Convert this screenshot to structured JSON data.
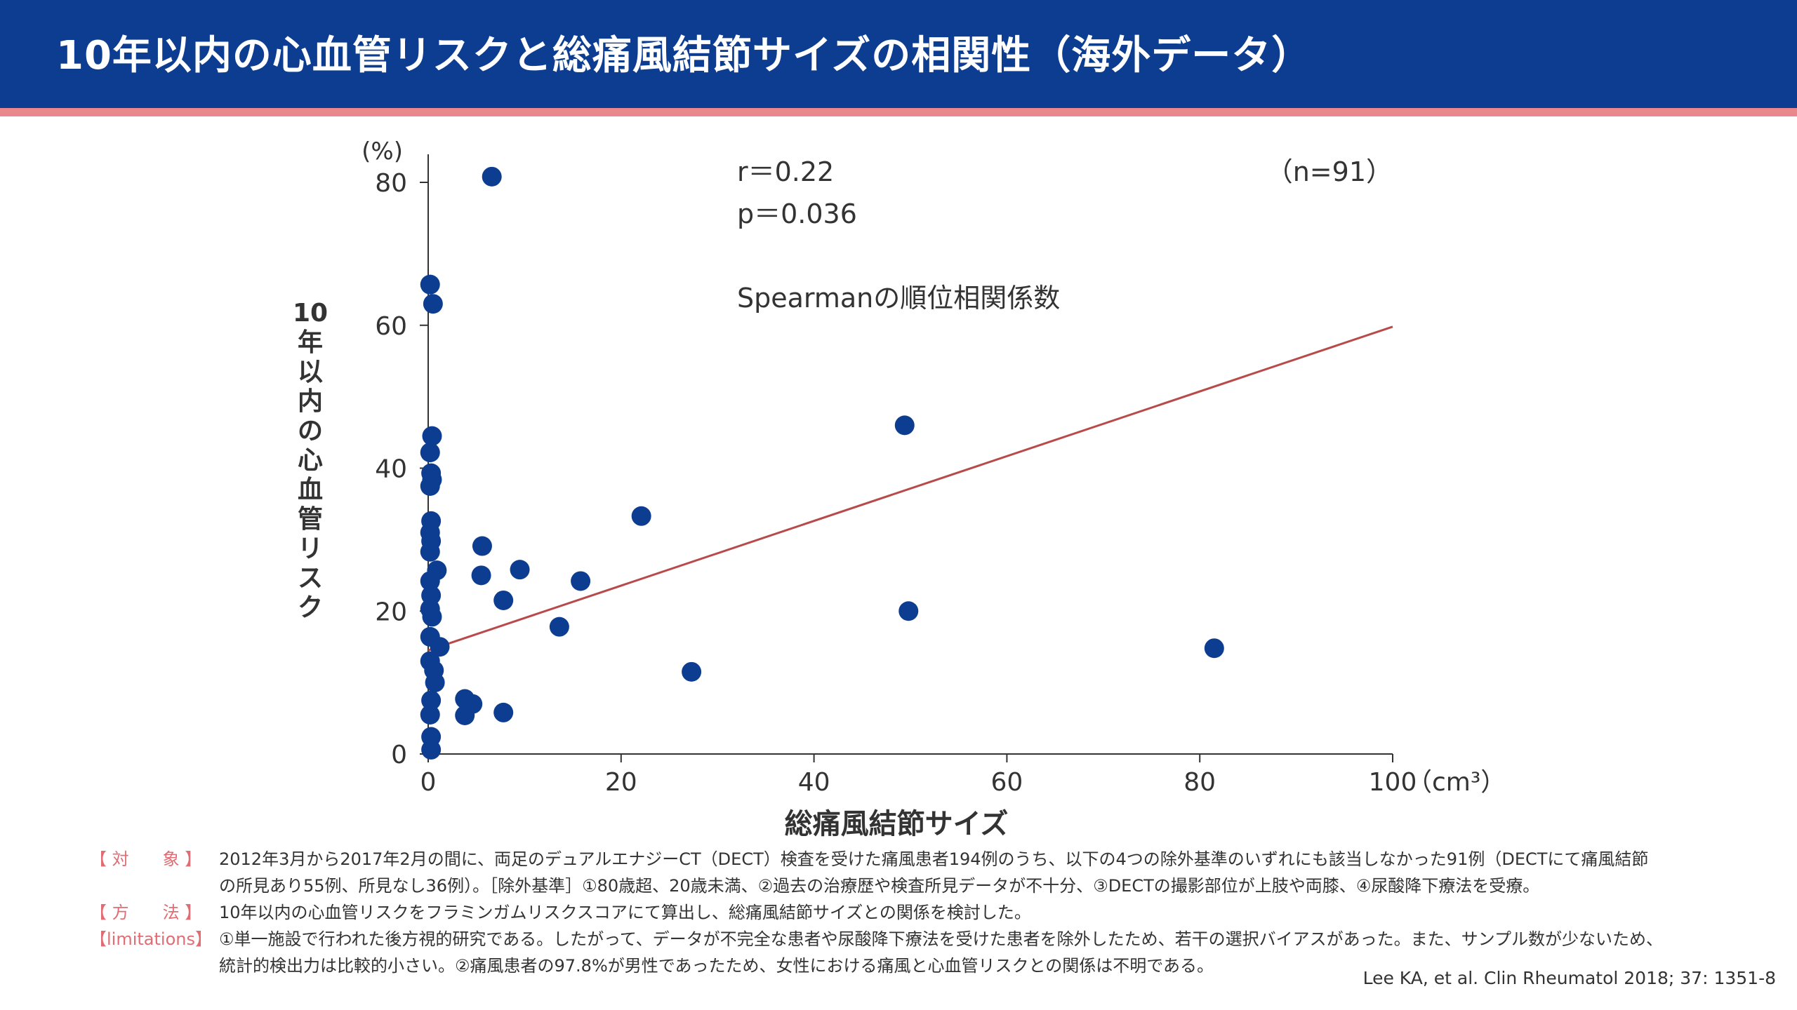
{
  "header": {
    "title": "10年以内の心血管リスクと総痛風結節サイズの相関性（海外データ）",
    "bg_color": "#0d3d91",
    "rule_color": "#e8888d"
  },
  "chart_data": {
    "type": "scatter",
    "xlabel": "総痛風結節サイズ",
    "ylabel": "10年以内の心血管リスク",
    "x_unit": "（cm³）",
    "y_unit": "(%)",
    "xlim": [
      0,
      100
    ],
    "ylim": [
      0,
      80
    ],
    "x_ticks": [
      0,
      20,
      40,
      60,
      80,
      100
    ],
    "y_ticks": [
      0,
      20,
      40,
      60,
      80
    ],
    "grid": false,
    "point_color": "#0d3d91",
    "line_color": "#b84a4a",
    "trend_line": {
      "x": [
        0,
        100
      ],
      "y": [
        14.5,
        59.8
      ]
    },
    "stats": {
      "r": "r＝0.22",
      "p": "p＝0.036",
      "method": "Spearmanの順位相関係数",
      "n": "（n=91）"
    },
    "points": [
      [
        6.6,
        80.8
      ],
      [
        0.2,
        65.7
      ],
      [
        0.5,
        63.0
      ],
      [
        0.4,
        44.5
      ],
      [
        0.2,
        42.2
      ],
      [
        0.3,
        39.3
      ],
      [
        0.4,
        38.4
      ],
      [
        0.2,
        37.5
      ],
      [
        49.4,
        46.0
      ],
      [
        22.1,
        33.3
      ],
      [
        0.3,
        32.6
      ],
      [
        0.2,
        31.0
      ],
      [
        0.3,
        29.8
      ],
      [
        5.6,
        29.1
      ],
      [
        0.2,
        28.3
      ],
      [
        0.9,
        25.7
      ],
      [
        9.5,
        25.8
      ],
      [
        5.5,
        25.0
      ],
      [
        0.2,
        24.2
      ],
      [
        15.8,
        24.2
      ],
      [
        0.3,
        22.2
      ],
      [
        7.8,
        21.5
      ],
      [
        0.2,
        20.3
      ],
      [
        0.4,
        19.2
      ],
      [
        49.8,
        20.0
      ],
      [
        13.6,
        17.8
      ],
      [
        0.2,
        16.4
      ],
      [
        1.2,
        15.0
      ],
      [
        81.5,
        14.8
      ],
      [
        0.2,
        13.0
      ],
      [
        0.6,
        11.7
      ],
      [
        27.3,
        11.5
      ],
      [
        0.7,
        10.0
      ],
      [
        3.8,
        7.7
      ],
      [
        4.6,
        7.0
      ],
      [
        0.3,
        7.5
      ],
      [
        7.8,
        5.8
      ],
      [
        0.2,
        5.5
      ],
      [
        3.8,
        5.4
      ],
      [
        0.3,
        2.4
      ],
      [
        0.3,
        0.6
      ]
    ]
  },
  "notes": [
    {
      "label": "【 対　　象 】",
      "lines": [
        "2012年3月から2017年2月の間に、両足のデュアルエナジーCT（DECT）検査を受けた痛風患者194例のうち、以下の4つの除外基準のいずれにも該当しなかった91例（DECTにて痛風結節",
        "の所見あり55例、所見なし36例）。［除外基準］①80歳超、20歳未満、②過去の治療歴や検査所見データが不十分、③DECTの撮影部位が上肢や両膝、④尿酸降下療法を受療。"
      ]
    },
    {
      "label": "【 方　　法 】",
      "lines": [
        "10年以内の心血管リスクをフラミンガムリスクスコアにて算出し、総痛風結節サイズとの関係を検討した。"
      ]
    },
    {
      "label": "【limitations】",
      "lines": [
        "①単一施設で行われた後方視的研究である。したがって、データが不完全な患者や尿酸降下療法を受けた患者を除外したため、若干の選択バイアスがあった。また、サンプル数が少ないため、",
        "統計的検出力は比較的小さい。②痛風患者の97.8%が男性であったため、女性における痛風と心血管リスクとの関係は不明である。"
      ]
    }
  ],
  "citation": "Lee KA, et al. Clin Rheumatol 2018; 37: 1351-8"
}
